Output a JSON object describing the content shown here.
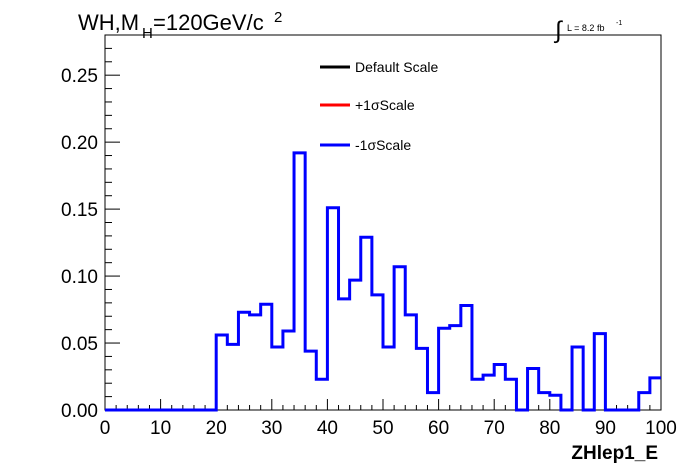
{
  "chart_data": {
    "type": "step",
    "title": {
      "main": "WH,M",
      "subscript": "H",
      "rest": "=120GeV/c",
      "superscript": "2"
    },
    "lumi": {
      "integral_symbol": "∫",
      "text": "L = 8.2 fb",
      "superscript": "-1"
    },
    "xlabel": "ZHlep1_E",
    "ylabel": "",
    "xlim": [
      0,
      100
    ],
    "ylim": [
      0,
      0.28
    ],
    "x_ticks": [
      0,
      10,
      20,
      30,
      40,
      50,
      60,
      70,
      80,
      90,
      100
    ],
    "x_tick_labels": [
      "0",
      "10",
      "20",
      "30",
      "40",
      "50",
      "60",
      "70",
      "80",
      "90",
      "100"
    ],
    "y_ticks": [
      0,
      0.05,
      0.1,
      0.15,
      0.2,
      0.25
    ],
    "y_tick_labels": [
      "0.00",
      "0.05",
      "0.10",
      "0.15",
      "0.20",
      "0.25"
    ],
    "bin_width": 2,
    "bin_edges_start": 0,
    "legend": {
      "position": "top-center",
      "entries": [
        {
          "label": "Default Scale",
          "color": "#000000"
        },
        {
          "label": "+1σScale",
          "color": "#ff0000"
        },
        {
          "label": "-1σScale",
          "color": "#0000ff"
        }
      ]
    },
    "series": [
      {
        "name": "-1σScale",
        "color": "#0000ff",
        "values": [
          0,
          0,
          0,
          0,
          0,
          0,
          0,
          0,
          0,
          0,
          0.056,
          0.049,
          0.073,
          0.071,
          0.079,
          0.047,
          0.059,
          0.192,
          0.044,
          0.023,
          0.151,
          0.083,
          0.097,
          0.129,
          0.086,
          0.047,
          0.107,
          0.071,
          0.046,
          0.013,
          0.061,
          0.063,
          0.078,
          0.023,
          0.026,
          0.034,
          0.023,
          0,
          0.031,
          0.013,
          0.011,
          0,
          0.047,
          0,
          0.057,
          0,
          0,
          0,
          0.013,
          0.024
        ]
      }
    ]
  }
}
